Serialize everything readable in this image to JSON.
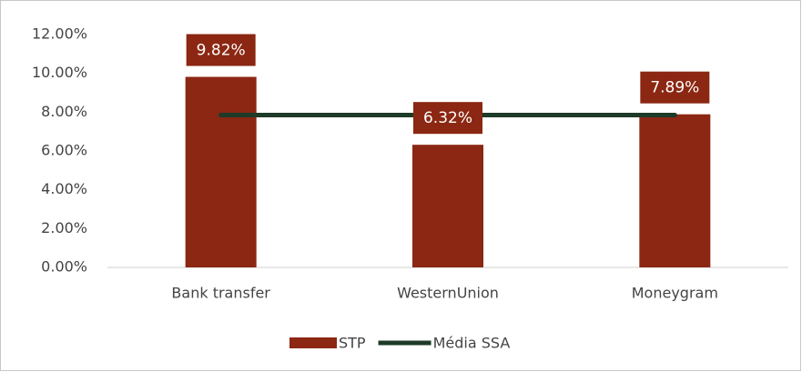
{
  "chart_data": {
    "type": "bar",
    "categories": [
      "Bank transfer",
      "WesternUnion",
      "Moneygram"
    ],
    "series": [
      {
        "name": "STP",
        "type": "bar",
        "color": "#8b2712",
        "values": [
          9.82,
          6.32,
          7.89
        ],
        "value_labels": [
          "9.82%",
          "6.32%",
          "7.89%"
        ]
      },
      {
        "name": "Média SSA",
        "type": "line",
        "color": "#1e3a28",
        "values": [
          7.85,
          7.85,
          7.85
        ]
      }
    ],
    "ylim": [
      0,
      12
    ],
    "yticks": [
      {
        "value": 0,
        "label": "0.00%"
      },
      {
        "value": 2,
        "label": "2.00%"
      },
      {
        "value": 4,
        "label": "4.00%"
      },
      {
        "value": 6,
        "label": "6.00%"
      },
      {
        "value": 8,
        "label": "8.00%"
      },
      {
        "value": 10,
        "label": "10.00%"
      },
      {
        "value": 12,
        "label": "12.00%"
      }
    ],
    "grid": false,
    "legend": "bottom"
  }
}
